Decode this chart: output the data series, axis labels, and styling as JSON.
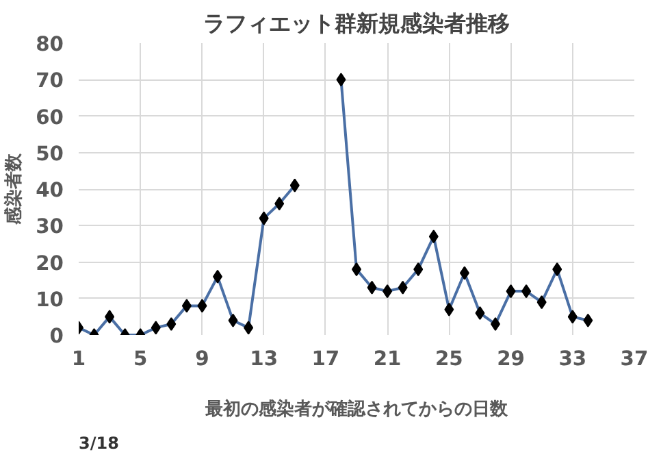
{
  "chart_data": {
    "type": "line",
    "title": "ラフィエット群新規感染者推移",
    "xlabel": "最初の感染者が確認されてからの日数",
    "ylabel": "感染者数",
    "annotations": [
      "3/18"
    ],
    "x": [
      1,
      2,
      3,
      4,
      5,
      6,
      7,
      8,
      9,
      10,
      11,
      12,
      13,
      14,
      15,
      16,
      17,
      18,
      19,
      20,
      21,
      22,
      23,
      24,
      25,
      26,
      27,
      28,
      29,
      30,
      31,
      32,
      33,
      34
    ],
    "series": [
      {
        "color": "#4a6fa5",
        "values": [
          2,
          0,
          5,
          0,
          0,
          2,
          3,
          8,
          8,
          16,
          4,
          2,
          32,
          36,
          41,
          null,
          null,
          70,
          18,
          13,
          12,
          13,
          18,
          27,
          7,
          17,
          6,
          3,
          12,
          12,
          9,
          18,
          5,
          4
        ]
      }
    ],
    "xlim": [
      1,
      37
    ],
    "xticks": [
      1,
      5,
      9,
      13,
      17,
      21,
      25,
      29,
      33,
      37
    ],
    "ylim": [
      0,
      80
    ],
    "yticks": [
      0,
      10,
      20,
      30,
      40,
      50,
      60,
      70,
      80
    ],
    "grid": true,
    "marker": "diamond",
    "line_style": "solid"
  }
}
